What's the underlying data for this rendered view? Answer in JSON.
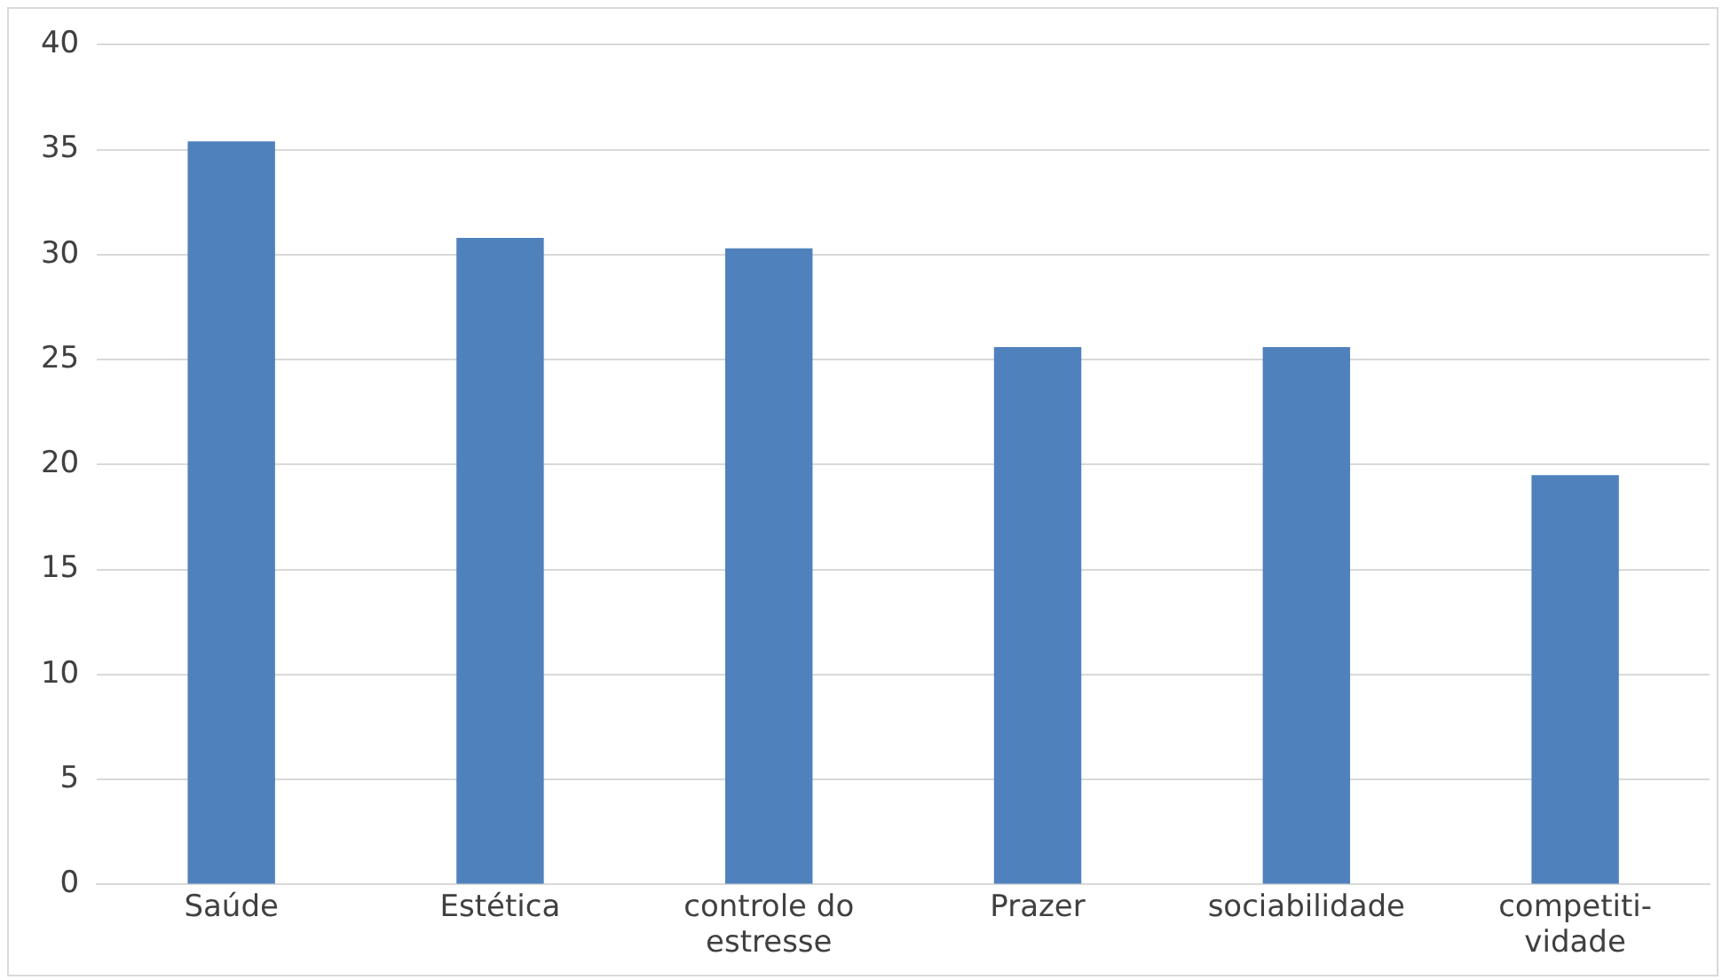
{
  "chart_data": {
    "type": "bar",
    "categories": [
      "Saúde",
      "Estética",
      "controle do\nestresse",
      "Prazer",
      "sociabilidade",
      "competiti-\nvidade"
    ],
    "values": [
      35.4,
      30.8,
      30.3,
      25.6,
      25.6,
      19.5
    ],
    "color": "#4f81bd",
    "ylim": [
      0,
      40
    ],
    "yticks": [
      0,
      5,
      10,
      15,
      20,
      25,
      30,
      35,
      40
    ],
    "grid": "y"
  }
}
